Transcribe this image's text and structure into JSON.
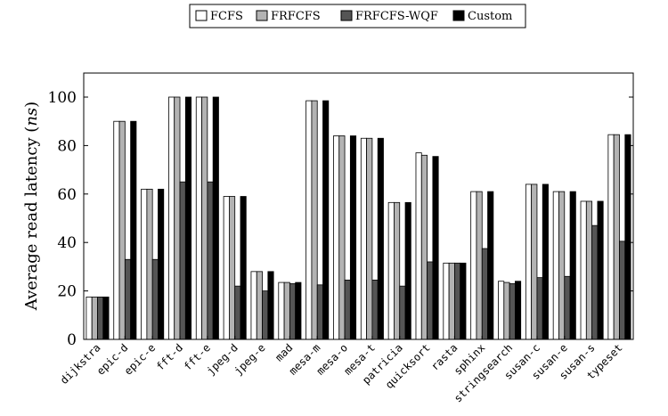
{
  "chart_data": {
    "type": "bar",
    "ylabel_prefix": "Average read latency (",
    "ylabel_unit": "ns",
    "ylabel_suffix": ")",
    "xlabel": "",
    "ylim": [
      0,
      110
    ],
    "yticks": [
      0,
      20,
      40,
      60,
      80,
      100
    ],
    "grid": false,
    "legend_position": "top-center",
    "categories": [
      "dijkstra",
      "epic-d",
      "epic-e",
      "fft-d",
      "fft-e",
      "jpeg-d",
      "jpeg-e",
      "mad",
      "mesa-m",
      "mesa-o",
      "mesa-t",
      "patricia",
      "quicksort",
      "rasta",
      "sphinx",
      "stringsearch",
      "susan-c",
      "susan-e",
      "susan-s",
      "typeset"
    ],
    "series": [
      {
        "name": "FCFS",
        "color": "#ffffff",
        "values": [
          17.5,
          90,
          62,
          100,
          100,
          59,
          28,
          23.5,
          98.5,
          84,
          83,
          56.5,
          77,
          31.5,
          61,
          24,
          64,
          61,
          57,
          84.5
        ]
      },
      {
        "name": "FRFCFS",
        "color": "#b3b3b3",
        "values": [
          17.5,
          90,
          62,
          100,
          100,
          59,
          28,
          23.5,
          98.5,
          84,
          83,
          56.5,
          76,
          31.5,
          61,
          23.5,
          64,
          61,
          57,
          84.5
        ]
      },
      {
        "name": "FRFCFS-WQF",
        "color": "#555555",
        "values": [
          17.5,
          33,
          33,
          65,
          65,
          22,
          20,
          23,
          22.5,
          24.5,
          24.5,
          22,
          32,
          31.5,
          37.5,
          23,
          25.5,
          26,
          47,
          40.5
        ]
      },
      {
        "name": "Custom",
        "color": "#000000",
        "values": [
          17.5,
          90,
          62,
          100,
          100,
          59,
          28,
          23.5,
          98.5,
          84,
          83,
          56.5,
          75.5,
          31.5,
          61,
          24,
          64,
          61,
          57,
          84.5
        ]
      }
    ]
  }
}
